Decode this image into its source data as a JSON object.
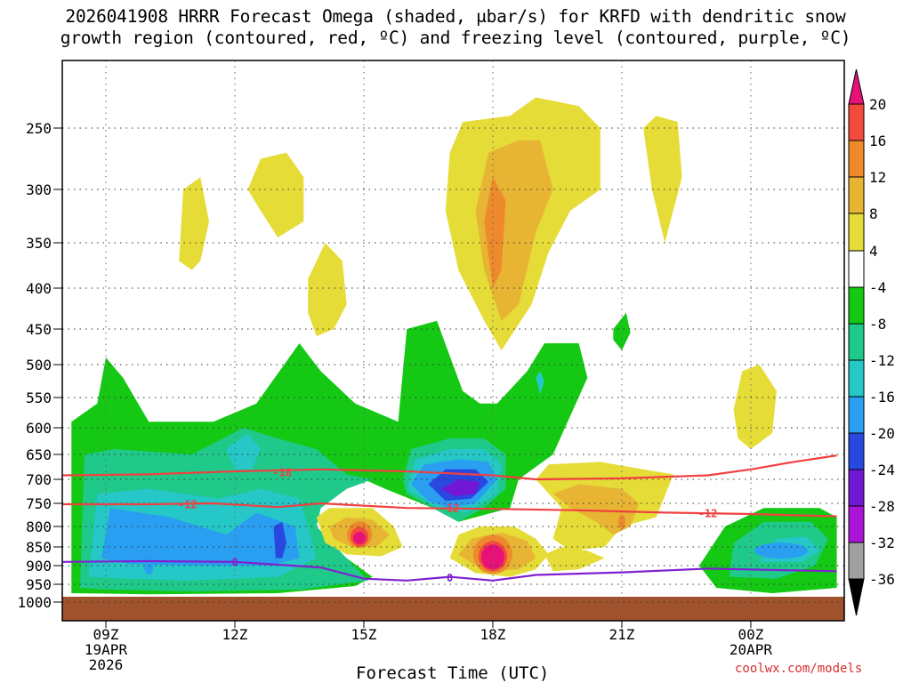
{
  "title": {
    "line1": "2026041908 HRRR Forecast Omega (shaded, μbar/s) for KRFD with dendritic snow",
    "line2": "growth region (contoured, red, ºC) and freezing level (contoured, purple, ºC)"
  },
  "credit": "coolwx.com/models",
  "chart_data": {
    "type": "time-height cross section (filled contour)",
    "title": "2026041908 HRRR Forecast Omega (shaded, μbar/s) for KRFD with dendritic snow growth region (contoured, red, ºC) and freezing level (contoured, purple, ºC)",
    "xlabel": "Forecast Time (UTC)",
    "ylabel": "",
    "y_axis": {
      "units": "hPa",
      "direction": "pressure decreasing upward",
      "ticks": [
        250,
        300,
        350,
        400,
        450,
        500,
        550,
        600,
        650,
        700,
        750,
        800,
        850,
        900,
        950,
        1000
      ],
      "range": [
        1000,
        200
      ]
    },
    "x_axis": {
      "units": "hours UTC",
      "range_hours": [
        8,
        26
      ],
      "ticks": [
        {
          "hour": 9,
          "label": "09Z",
          "date": "19APR",
          "year": "2026"
        },
        {
          "hour": 12,
          "label": "12Z"
        },
        {
          "hour": 15,
          "label": "15Z"
        },
        {
          "hour": 18,
          "label": "18Z"
        },
        {
          "hour": 21,
          "label": "21Z"
        },
        {
          "hour": 24,
          "label": "00Z",
          "date": "20APR"
        }
      ]
    },
    "grid": true,
    "colorbar": {
      "units": "μbar/s",
      "levels": [
        20,
        16,
        12,
        8,
        4,
        -4,
        -8,
        -12,
        -16,
        -20,
        -24,
        -28,
        -32,
        -36
      ],
      "bins": [
        {
          "range": "> 20",
          "color": "#e8117a"
        },
        {
          "range": "16 to 20",
          "color": "#f24a3c"
        },
        {
          "range": "12 to 16",
          "color": "#ee8a2c"
        },
        {
          "range": "8 to 12",
          "color": "#e7b533"
        },
        {
          "range": "4 to 8",
          "color": "#e6dc38"
        },
        {
          "range": "-4 to 4",
          "color": "#ffffff"
        },
        {
          "range": "-8 to -4",
          "color": "#14c814"
        },
        {
          "range": "-12 to -8",
          "color": "#1fc98a"
        },
        {
          "range": "-16 to -12",
          "color": "#25c7c7"
        },
        {
          "range": "-20 to -16",
          "color": "#2a9ef0"
        },
        {
          "range": "-24 to -20",
          "color": "#2848e0"
        },
        {
          "range": "-28 to -24",
          "color": "#7218d4"
        },
        {
          "range": "-32 to -28",
          "color": "#a914d6"
        },
        {
          "range": "-36 to -32",
          "color": "#a0a0a0"
        },
        {
          "range": "< -36",
          "color": "#000000"
        }
      ]
    },
    "omega_regions": [
      {
        "sign": "rising",
        "peak": -8,
        "desc": "broad ascent, lower troposphere",
        "hours": [
          8.2,
          26
        ],
        "p_range": [
          975,
          480
        ]
      },
      {
        "sign": "rising",
        "peak": -24,
        "desc": "max ascent core",
        "hour": 17.0,
        "p": 720
      },
      {
        "sign": "rising",
        "peak": -20,
        "desc": "ascent core",
        "hour": 13.0,
        "p": 850
      },
      {
        "sign": "sinking",
        "peak": 20,
        "desc": "max subsidence",
        "hour": 18.0,
        "p": 875
      },
      {
        "sign": "sinking",
        "peak": 20,
        "desc": "subsidence",
        "hour": 15.0,
        "p": 830
      },
      {
        "sign": "sinking",
        "peak": 16,
        "desc": "upper subsidence",
        "hour": 18.0,
        "p": 350
      },
      {
        "sign": "sinking",
        "peak": 8,
        "desc": "mid-level subsidence",
        "hour": 20.0,
        "p": 730
      },
      {
        "sign": "sinking",
        "peak": 8,
        "desc": "upper subsidence",
        "hour": 22.0,
        "p": 280
      }
    ],
    "contours": [
      {
        "name": "-18",
        "color": "#f04040",
        "kind": "dendritic growth region upper bound",
        "points": [
          [
            8,
            692
          ],
          [
            10,
            690
          ],
          [
            12,
            684
          ],
          [
            14,
            680
          ],
          [
            16,
            684
          ],
          [
            18,
            692
          ],
          [
            19,
            700
          ],
          [
            21,
            698
          ],
          [
            23,
            692
          ],
          [
            24,
            680
          ],
          [
            25,
            665
          ],
          [
            26,
            652
          ]
        ]
      },
      {
        "name": "-12",
        "color": "#f04040",
        "kind": "dendritic growth region lower bound",
        "points": [
          [
            8,
            752
          ],
          [
            10,
            752
          ],
          [
            11.5,
            750
          ],
          [
            13,
            758
          ],
          [
            14,
            750
          ],
          [
            16,
            760
          ],
          [
            18,
            762
          ],
          [
            20,
            765
          ],
          [
            22,
            770
          ],
          [
            24,
            773
          ],
          [
            26,
            778
          ]
        ]
      },
      {
        "name": "0",
        "color": "#8020d0",
        "kind": "freezing level",
        "points": [
          [
            8,
            890
          ],
          [
            10,
            888
          ],
          [
            12,
            890
          ],
          [
            14,
            905
          ],
          [
            15,
            935
          ],
          [
            16,
            940
          ],
          [
            17,
            930
          ],
          [
            18,
            940
          ],
          [
            19,
            925
          ],
          [
            21,
            918
          ],
          [
            23,
            908
          ],
          [
            26,
            915
          ]
        ]
      }
    ]
  }
}
